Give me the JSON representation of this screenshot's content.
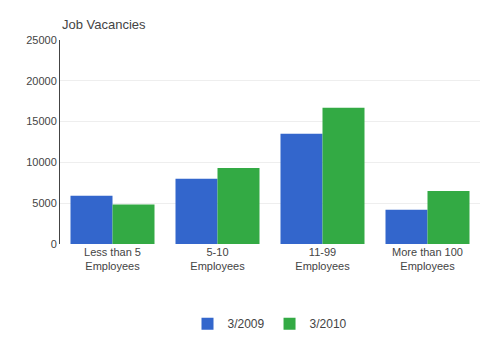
{
  "chart_data": {
    "type": "bar",
    "ylabel": "Job Vacancies",
    "categories": [
      "Less than 5\nEmployees",
      "5-10\nEmployees",
      "11-99\nEmployees",
      "More than 100\nEmployees"
    ],
    "series": [
      {
        "name": "3/2009",
        "color": "#3366CC",
        "values": [
          5900,
          8000,
          13500,
          4200
        ]
      },
      {
        "name": "3/2010",
        "color": "#33AA44",
        "values": [
          4850,
          9300,
          16700,
          6500
        ]
      }
    ],
    "ylim": [
      0,
      25000
    ],
    "yticks": [
      0,
      5000,
      10000,
      15000,
      20000,
      25000
    ],
    "grid": true,
    "legend": "bottom"
  }
}
